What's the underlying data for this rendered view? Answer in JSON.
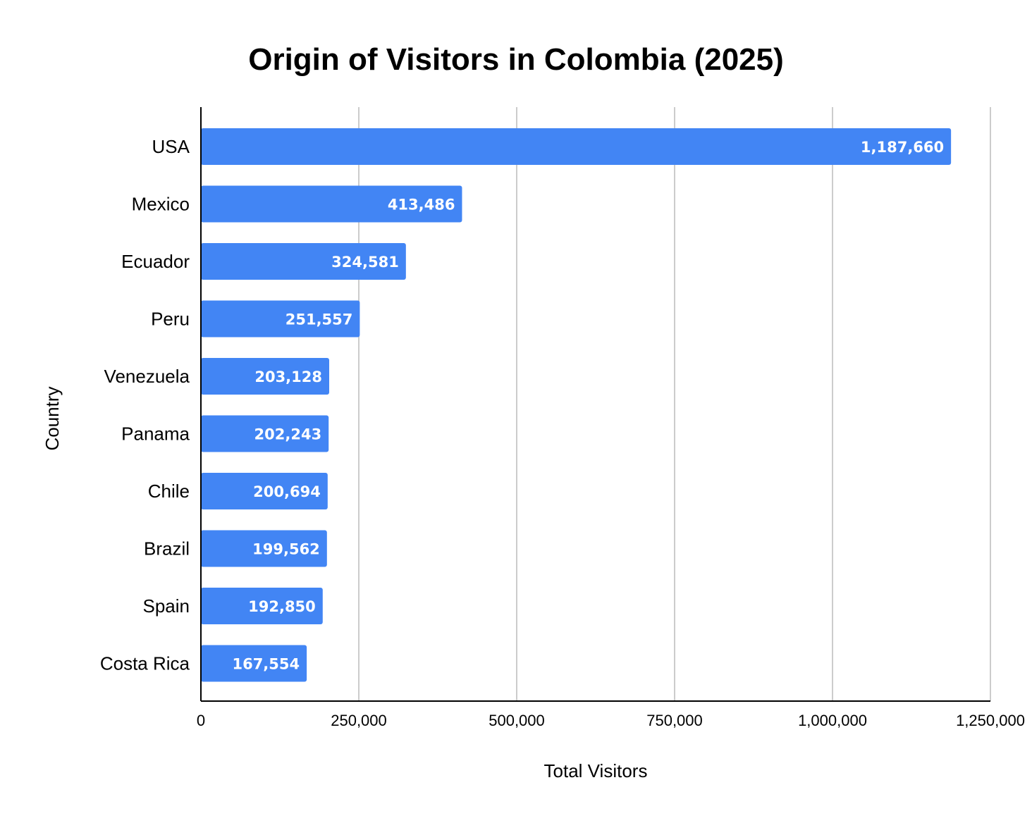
{
  "chart_data": {
    "type": "bar",
    "orientation": "horizontal",
    "title": "Origin of Visitors in Colombia (2025)",
    "xlabel": "Total Visitors",
    "ylabel": "Country",
    "categories": [
      "USA",
      "Mexico",
      "Ecuador",
      "Peru",
      "Venezuela",
      "Panama",
      "Chile",
      "Brazil",
      "Spain",
      "Costa Rica"
    ],
    "values": [
      1187660,
      413486,
      324581,
      251557,
      203128,
      202243,
      200694,
      199562,
      192850,
      167554
    ],
    "data_labels": [
      "1,187,660",
      "413,486",
      "324,581",
      "251,557",
      "203,128",
      "202,243",
      "200,694",
      "199,562",
      "192,850",
      "167,554"
    ],
    "xlim": [
      0,
      1250000
    ],
    "x_ticks": [
      0,
      250000,
      500000,
      750000,
      1000000,
      1250000
    ],
    "x_tick_labels": [
      "0",
      "250,000",
      "500,000",
      "750,000",
      "1,000,000",
      "1,250,000"
    ],
    "grid": true,
    "legend": "none",
    "bar_color": "#4285f4",
    "gridline_color": "#cccccc"
  }
}
